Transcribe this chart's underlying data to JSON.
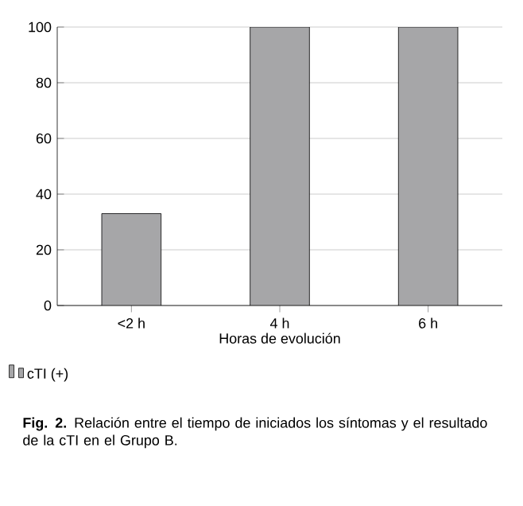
{
  "chart_data": {
    "type": "bar",
    "xlabel": "Horas de evolución",
    "categories": [
      "<2 h",
      "4 h",
      "6 h"
    ],
    "series": [
      {
        "name": "cTI (+)",
        "color": "#a6a6a8",
        "values": [
          33,
          100,
          100
        ]
      }
    ],
    "ylim": [
      0,
      100
    ],
    "yticks": [
      0,
      20,
      40,
      60,
      80,
      100
    ],
    "grid": "y",
    "legend": "bottom left",
    "annotations": [
      "**Fig. 2.** Relación entre el tiempo de iniciados los síntomas y el resultado de la cTI en el Grupo B."
    ]
  }
}
